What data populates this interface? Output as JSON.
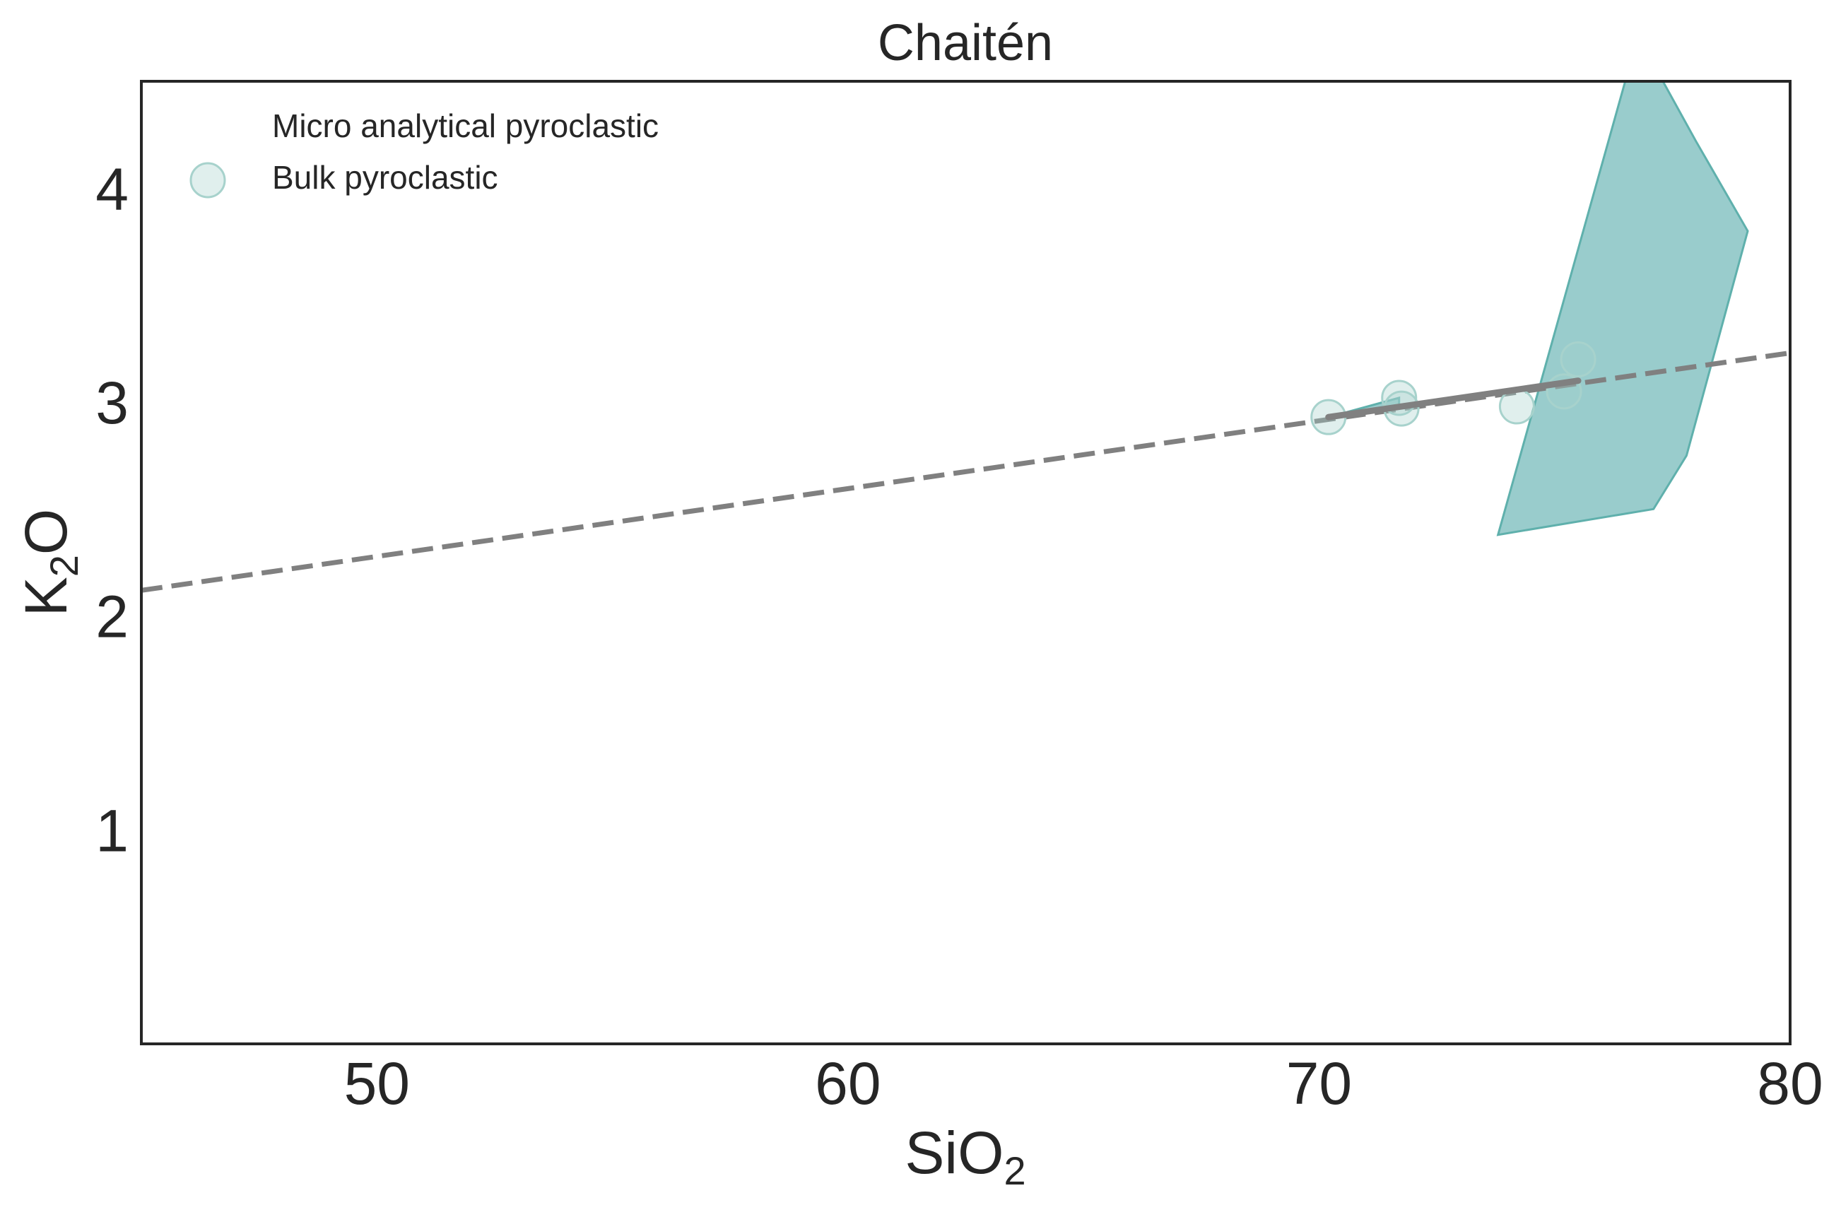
{
  "chart_data": {
    "type": "scatter",
    "title": "Chaitén",
    "xlabel": {
      "base": "SiO",
      "sub": "2"
    },
    "ylabel": {
      "base": "K",
      "sub": "2",
      "rest": "O"
    },
    "xlim": [
      45,
      80
    ],
    "ylim": [
      0,
      4.5
    ],
    "xticks": [
      50,
      60,
      70,
      80
    ],
    "yticks": [
      1,
      2,
      3,
      4
    ],
    "grid": false,
    "legend_placement": "upper-left",
    "legend": [
      {
        "label": "Micro analytical pyroclastic",
        "marker": "none"
      },
      {
        "label": "Bulk pyroclastic",
        "marker": "circle"
      }
    ],
    "colors": {
      "fill": "#7fbfbf",
      "fill_edge": "#5fb0ac",
      "points": "#a7d2cc",
      "line": "#808080",
      "frame": "#262626"
    },
    "series": [
      {
        "name": "Micro analytical pyroclastic",
        "kind": "area",
        "points": [
          [
            73.8,
            2.38
          ],
          [
            76.5,
            4.5
          ],
          [
            77.3,
            4.5
          ],
          [
            78.0,
            4.22
          ],
          [
            79.1,
            3.8
          ],
          [
            77.8,
            2.75
          ],
          [
            77.1,
            2.5
          ],
          [
            73.8,
            2.38
          ]
        ]
      },
      {
        "name": "Micro analytical pyroclastic",
        "kind": "area",
        "points": [
          [
            70.2,
            2.93
          ],
          [
            71.7,
            3.02
          ],
          [
            71.7,
            2.98
          ],
          [
            70.2,
            2.93
          ]
        ]
      },
      {
        "name": "Bulk pyroclastic",
        "kind": "scatter",
        "x": [
          70.2,
          71.7,
          71.75,
          74.2,
          75.2,
          75.5
        ],
        "y": [
          2.93,
          3.02,
          2.97,
          2.98,
          3.05,
          3.2
        ]
      },
      {
        "kind": "line",
        "style": "solid",
        "x": [
          70.2,
          75.5
        ],
        "y": [
          2.93,
          3.1
        ]
      },
      {
        "kind": "line",
        "style": "dashed",
        "x": [
          45,
          80
        ],
        "y": [
          2.12,
          3.23
        ]
      }
    ]
  }
}
